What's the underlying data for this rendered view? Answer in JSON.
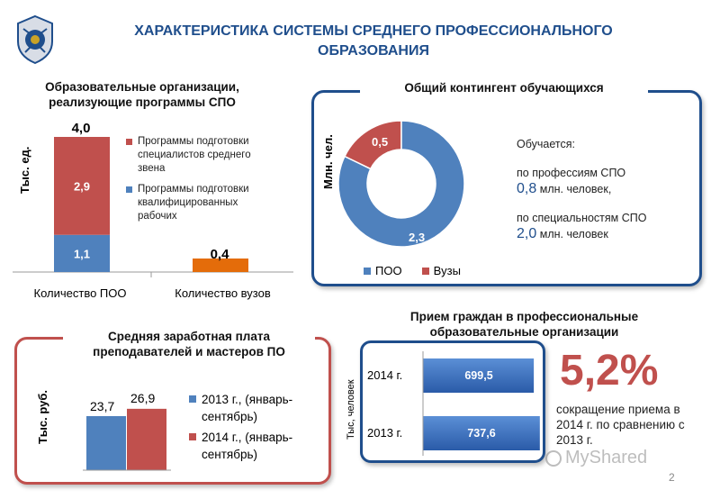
{
  "header": {
    "title": "ХАРАКТЕРИСТИКА СИСТЕМЫ СРЕДНЕГО ПРОФЕССИОНАЛЬНОГО ОБРАЗОВАНИЯ"
  },
  "slide_number": "2",
  "watermark": "MyShared",
  "colors": {
    "blue": "#4f81bd",
    "red": "#c0504d",
    "orange": "#e46c0a",
    "navy": "#1f4e8c"
  },
  "chart_data": [
    {
      "type": "bar",
      "title": "Образовательные организации, реализующие программы СПО",
      "ylabel": "Тыс. ед.",
      "categories": [
        "Количество ПОО",
        "Количество вузов"
      ],
      "totals": [
        "4,0",
        "0,4"
      ],
      "series": [
        {
          "name": "Программы подготовки квалифицированных рабочих",
          "values": [
            1.1,
            null
          ],
          "labels": [
            "1,1",
            ""
          ]
        },
        {
          "name": "Программы подготовки специалистов среднего звена",
          "values": [
            2.9,
            null
          ],
          "labels": [
            "2,9",
            ""
          ]
        },
        {
          "name": "",
          "values": [
            null,
            0.4
          ],
          "labels": [
            "",
            ""
          ]
        }
      ],
      "ylim": [
        0,
        4.0
      ]
    },
    {
      "type": "pie",
      "title": "Общий контингент обучающихся",
      "ylabel": "Млн. чел.",
      "labels": [
        "ПОО",
        "Вузы"
      ],
      "values": [
        2.3,
        0.5
      ],
      "value_labels": [
        "2,3",
        "0,5"
      ]
    },
    {
      "type": "bar",
      "title": "Средняя заработная плата преподавателей и мастеров ПО",
      "ylabel": "Тыс. руб.",
      "series": [
        {
          "name": "2013 г., (январь-сентябрь)",
          "values": [
            23.7
          ],
          "label": "23,7"
        },
        {
          "name": "2014 г., (январь-сентябрь)",
          "values": [
            26.9
          ],
          "label": "26,9"
        }
      ]
    },
    {
      "type": "bar",
      "orientation": "horizontal",
      "title": "Прием граждан в профессиональные образовательные организации",
      "ylabel": "Тыс, человек",
      "categories": [
        "2014 г.",
        "2013 г."
      ],
      "values": [
        699.5,
        737.6
      ],
      "value_labels": [
        "699,5",
        "737,6"
      ]
    }
  ],
  "students_note": {
    "heading": "Обучается:",
    "line1": "по профессиям СПО",
    "value1": "0,8",
    "unit1": "млн. человек,",
    "line2": "по специальностям СПО",
    "value2": "2,0",
    "unit2": "млн. человек"
  },
  "reduction": {
    "percent": "5,2%",
    "text": "сокращение приема в 2014 г. по сравнению с 2013 г."
  }
}
